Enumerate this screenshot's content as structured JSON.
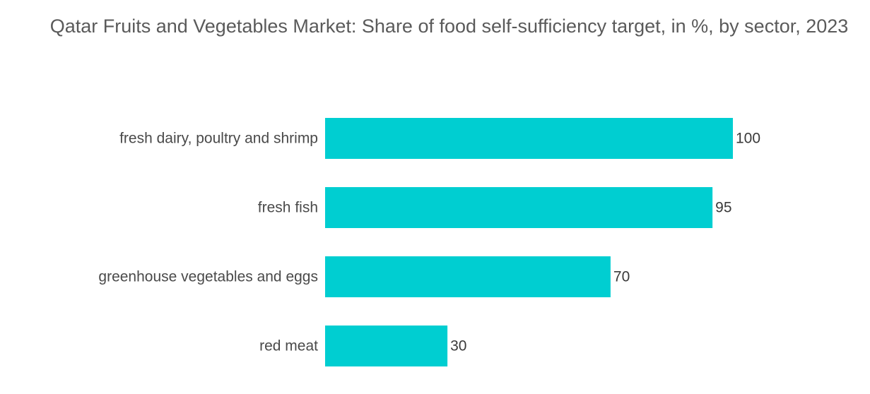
{
  "chart_data": {
    "type": "bar",
    "orientation": "horizontal",
    "title": "Qatar Fruits and Vegetables Market: Share of food self-sufficiency target, in %, by sector, 2023",
    "categories": [
      "fresh dairy, poultry and shrimp",
      "fresh fish",
      "greenhouse vegetables and eggs",
      "red meat"
    ],
    "values": [
      100,
      95,
      70,
      30
    ],
    "xlim": [
      0,
      100
    ],
    "grid": false,
    "legend": "none",
    "bar_color": "#00CED1"
  }
}
